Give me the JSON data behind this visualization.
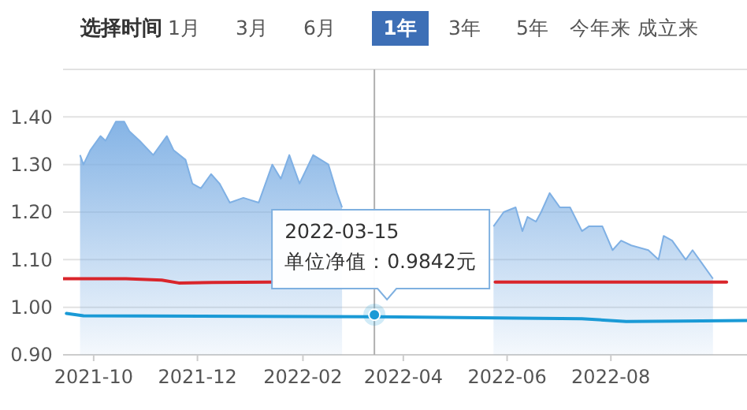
{
  "chart_data": {
    "type": "area",
    "title": "选择时间",
    "annotations": [
      "1月",
      "3月",
      "6月",
      "1年",
      "3年",
      "5年",
      "今年来",
      "成立来",
      {
        "text": "2022-03-15\n单位净值：0.9842元",
        "x": "2022-03-15",
        "y": 0.9842
      }
    ],
    "xlim": [
      "2021-09-13",
      "2022-10-20"
    ],
    "ylim": [
      0.9,
      1.5
    ],
    "xticks": [
      {
        "value": "2021-10-01",
        "label": "2021-10"
      },
      {
        "value": "2021-12-01",
        "label": "2021-12"
      },
      {
        "value": "2022-02-01",
        "label": "2022-02"
      },
      {
        "value": "2022-04-01",
        "label": "2022-04"
      },
      {
        "value": "2022-06-01",
        "label": "2022-06"
      },
      {
        "value": "2022-08-01",
        "label": "2022-08"
      }
    ],
    "yticks": [
      {
        "value": 0.9,
        "label": "0.90"
      },
      {
        "value": 1.0,
        "label": "1.00"
      },
      {
        "value": 1.1,
        "label": "1.10"
      },
      {
        "value": 1.2,
        "label": "1.20"
      },
      {
        "value": 1.3,
        "label": "1.30"
      },
      {
        "value": 1.4,
        "label": "1.40"
      },
      {
        "value": 1.5,
        "label": null
      }
    ],
    "grid": "y",
    "ref_lines": [
      {
        "axis": "x",
        "value": "2022-03-15",
        "color": "#b0b0b0"
      }
    ],
    "series": [
      {
        "color": "#7fb0e4",
        "x": [
          "2021-09-23",
          "2021-09-25",
          "2021-09-29",
          "2021-10-05",
          "2021-10-08",
          "2021-10-14",
          "2021-10-19",
          "2021-10-22",
          "2021-10-28",
          "2021-11-05",
          "2021-11-13",
          "2021-11-17",
          "2021-11-24",
          "2021-11-28",
          "2021-12-03",
          "2021-12-09",
          "2021-12-14",
          "2021-12-20",
          "2021-12-28",
          "2022-01-06",
          "2022-01-14",
          "2022-01-19",
          "2022-01-24",
          "2022-01-30",
          "2022-02-07",
          "2022-02-16",
          "2022-02-21",
          "2022-02-24",
          "2022-03-01",
          "2022-05-17",
          "2022-05-20",
          "2022-05-24",
          "2022-05-30",
          "2022-06-06",
          "2022-06-10",
          "2022-06-13",
          "2022-06-18",
          "2022-06-21",
          "2022-06-26",
          "2022-07-02",
          "2022-07-08",
          "2022-07-15",
          "2022-07-19",
          "2022-07-27",
          "2022-08-02",
          "2022-08-07",
          "2022-08-13",
          "2022-08-23",
          "2022-08-29",
          "2022-09-01",
          "2022-09-06",
          "2022-09-14",
          "2022-09-18",
          "2022-09-24",
          "2022-09-30"
        ],
        "values": [
          1.32,
          1.3,
          1.33,
          1.36,
          1.35,
          1.39,
          1.39,
          1.37,
          1.35,
          1.32,
          1.36,
          1.33,
          1.31,
          1.26,
          1.25,
          1.28,
          1.26,
          1.22,
          1.23,
          1.22,
          1.3,
          1.27,
          1.32,
          1.26,
          1.32,
          1.3,
          1.24,
          1.21,
          null,
          null,
          null,
          1.17,
          1.2,
          1.21,
          1.16,
          1.19,
          1.18,
          1.2,
          1.24,
          1.21,
          1.21,
          1.16,
          1.17,
          1.17,
          1.12,
          1.14,
          1.13,
          1.12,
          1.1,
          1.15,
          1.14,
          1.1,
          1.12,
          1.09,
          1.06
        ]
      },
      {
        "type": "line",
        "color": "#d9252b",
        "x": [
          "2021-09-13",
          "2021-10-20",
          "2021-11-10",
          "2021-11-20",
          "2021-12-10",
          "2022-01-14",
          "2022-03-15",
          "2022-05-25",
          "2022-08-01",
          "2022-10-08"
        ],
        "values": [
          1.06,
          1.06,
          1.057,
          1.051,
          1.052,
          1.053,
          null,
          1.053,
          1.053,
          1.053
        ]
      },
      {
        "type": "line",
        "color": "#1a9ad6",
        "x": [
          "2021-09-15",
          "2021-09-25",
          "2022-03-15",
          "2022-05-15",
          "2022-07-15",
          "2022-08-10",
          "2022-09-10",
          "2022-10-20"
        ],
        "values": [
          0.987,
          0.982,
          0.98,
          0.978,
          0.976,
          0.97,
          0.971,
          0.972
        ]
      }
    ]
  }
}
